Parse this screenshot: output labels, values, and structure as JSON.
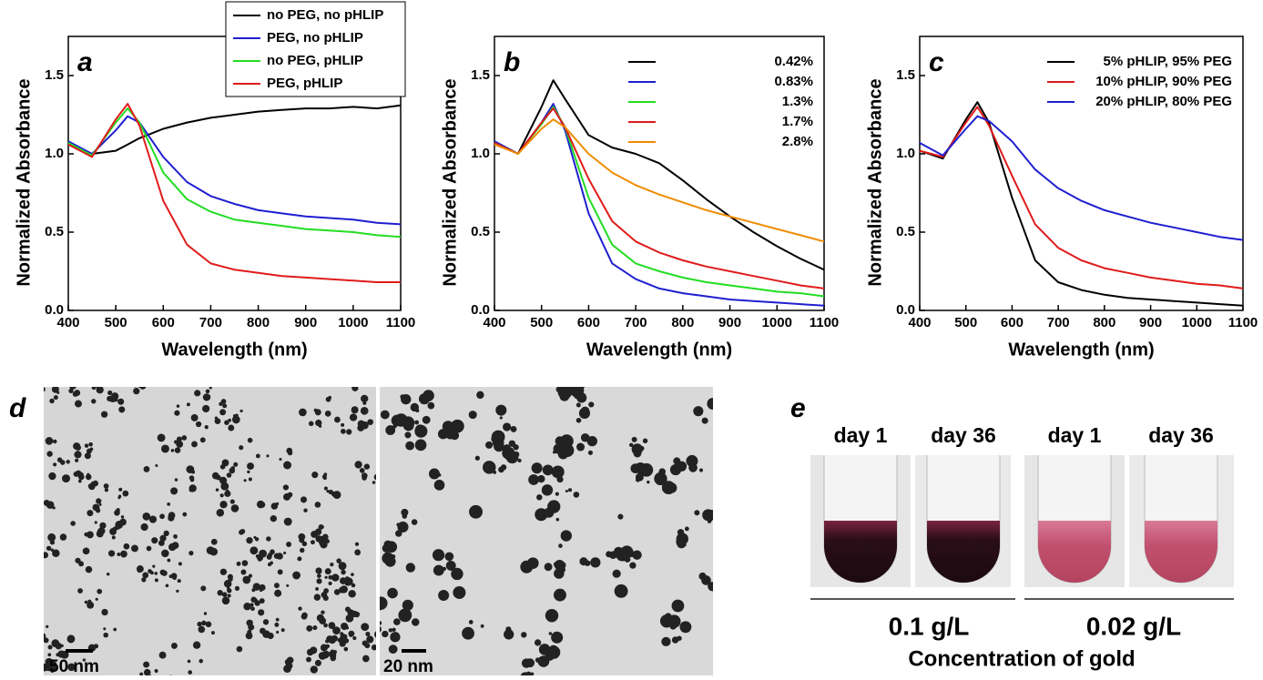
{
  "chart_data": [
    {
      "type": "line",
      "label": "a",
      "xlabel": "Wavelength (nm)",
      "ylabel": "Normalized Absorbance",
      "x": [
        400,
        450,
        500,
        525,
        550,
        600,
        650,
        700,
        750,
        800,
        850,
        900,
        950,
        1000,
        1050,
        1100
      ],
      "xlim": [
        400,
        1100
      ],
      "xticks": [
        400,
        500,
        600,
        700,
        800,
        900,
        1000,
        1100
      ],
      "ylim": [
        0,
        1.75
      ],
      "yticks": [
        {
          "value": 0,
          "label": "0.0"
        },
        {
          "value": 0.5,
          "label": "0.5"
        },
        {
          "value": 1,
          "label": "1.0"
        },
        {
          "value": 1.5,
          "label": "1.5"
        }
      ],
      "legend": "upper right",
      "legend_frame": true,
      "series": [
        {
          "name": "no PEG, no pHLIP",
          "color": "#000000",
          "values": [
            1.07,
            1.0,
            1.02,
            1.06,
            1.1,
            1.16,
            1.2,
            1.23,
            1.25,
            1.27,
            1.28,
            1.29,
            1.29,
            1.3,
            1.29,
            1.31
          ]
        },
        {
          "name": "PEG, no pHLIP",
          "color": "#1f1fd0",
          "values": [
            1.08,
            1.0,
            1.15,
            1.24,
            1.2,
            0.98,
            0.82,
            0.73,
            0.68,
            0.64,
            0.62,
            0.6,
            0.59,
            0.58,
            0.56,
            0.55
          ]
        },
        {
          "name": "no PEG, pHLIP",
          "color": "#22dd22",
          "values": [
            1.07,
            0.99,
            1.2,
            1.29,
            1.2,
            0.88,
            0.71,
            0.63,
            0.58,
            0.56,
            0.54,
            0.52,
            0.51,
            0.5,
            0.48,
            0.47
          ]
        },
        {
          "name": "PEG, pHLIP",
          "color": "#e01b1b",
          "values": [
            1.06,
            0.98,
            1.22,
            1.32,
            1.18,
            0.7,
            0.42,
            0.3,
            0.26,
            0.24,
            0.22,
            0.21,
            0.2,
            0.19,
            0.18,
            0.18
          ]
        }
      ]
    },
    {
      "type": "line",
      "label": "b",
      "xlabel": "Wavelength (nm)",
      "ylabel": "Normalized Absorbance",
      "x": [
        400,
        450,
        500,
        525,
        550,
        600,
        650,
        700,
        750,
        800,
        850,
        900,
        950,
        1000,
        1050,
        1100
      ],
      "xlim": [
        400,
        1100
      ],
      "xticks": [
        400,
        500,
        600,
        700,
        800,
        900,
        1000,
        1100
      ],
      "ylim": [
        0,
        1.75
      ],
      "yticks": [
        {
          "value": 0,
          "label": "0.0"
        },
        {
          "value": 0.5,
          "label": "0.5"
        },
        {
          "value": 1,
          "label": "1.0"
        },
        {
          "value": 1.5,
          "label": "1.5"
        }
      ],
      "legend": "upper right",
      "legend_frame": false,
      "series": [
        {
          "name": "0.42%",
          "color": "#000000",
          "values": [
            1.08,
            1.0,
            1.3,
            1.47,
            1.35,
            1.12,
            1.04,
            1.0,
            0.94,
            0.83,
            0.71,
            0.6,
            0.5,
            0.41,
            0.33,
            0.26
          ]
        },
        {
          "name": "0.83%",
          "color": "#1f1fd0",
          "values": [
            1.08,
            1.0,
            1.2,
            1.32,
            1.15,
            0.62,
            0.3,
            0.2,
            0.14,
            0.11,
            0.09,
            0.07,
            0.06,
            0.05,
            0.04,
            0.03
          ]
        },
        {
          "name": "1.3%",
          "color": "#22dd22",
          "values": [
            1.07,
            1.0,
            1.19,
            1.3,
            1.17,
            0.72,
            0.42,
            0.3,
            0.25,
            0.21,
            0.18,
            0.16,
            0.14,
            0.12,
            0.11,
            0.09
          ]
        },
        {
          "name": "1.7%",
          "color": "#e01b1b",
          "values": [
            1.07,
            1.0,
            1.2,
            1.29,
            1.17,
            0.84,
            0.57,
            0.44,
            0.37,
            0.32,
            0.28,
            0.25,
            0.22,
            0.19,
            0.16,
            0.14
          ]
        },
        {
          "name": "2.8%",
          "color": "#f08c00",
          "values": [
            1.06,
            1.0,
            1.16,
            1.22,
            1.17,
            1.0,
            0.88,
            0.8,
            0.74,
            0.69,
            0.64,
            0.6,
            0.56,
            0.52,
            0.48,
            0.44
          ]
        }
      ]
    },
    {
      "type": "line",
      "label": "c",
      "xlabel": "Wavelength (nm)",
      "ylabel": "Normalized Absorbance",
      "x": [
        400,
        450,
        500,
        525,
        550,
        600,
        650,
        700,
        750,
        800,
        850,
        900,
        950,
        1000,
        1050,
        1100
      ],
      "xlim": [
        400,
        1100
      ],
      "xticks": [
        400,
        500,
        600,
        700,
        800,
        900,
        1000,
        1100
      ],
      "ylim": [
        0,
        1.75
      ],
      "yticks": [
        {
          "value": 0,
          "label": "0.0"
        },
        {
          "value": 0.5,
          "label": "0.5"
        },
        {
          "value": 1,
          "label": "1.0"
        },
        {
          "value": 1.5,
          "label": "1.5"
        }
      ],
      "legend": "upper right",
      "legend_frame": false,
      "series": [
        {
          "name": "5% pHLIP, 95% PEG",
          "color": "#000000",
          "values": [
            1.02,
            0.97,
            1.22,
            1.33,
            1.2,
            0.72,
            0.32,
            0.18,
            0.13,
            0.1,
            0.08,
            0.07,
            0.06,
            0.05,
            0.04,
            0.03
          ]
        },
        {
          "name": "10% pHLIP, 90% PEG",
          "color": "#e01b1b",
          "values": [
            1.02,
            0.98,
            1.2,
            1.3,
            1.18,
            0.86,
            0.55,
            0.4,
            0.32,
            0.27,
            0.24,
            0.21,
            0.19,
            0.17,
            0.16,
            0.14
          ]
        },
        {
          "name": "20% pHLIP, 80% PEG",
          "color": "#1f1fd0",
          "values": [
            1.07,
            0.99,
            1.16,
            1.24,
            1.21,
            1.08,
            0.9,
            0.78,
            0.7,
            0.64,
            0.6,
            0.56,
            0.53,
            0.5,
            0.47,
            0.45
          ]
        }
      ]
    }
  ],
  "panel_d": {
    "label": "d",
    "scale_bars": [
      "50 nm",
      "20 nm"
    ]
  },
  "panel_e": {
    "label": "e",
    "tubes": [
      "day 1",
      "day 36",
      "day 1",
      "day 36"
    ],
    "concentrations": [
      "0.1 g/L",
      "0.02 g/L"
    ],
    "xlabel": "Concentration of gold"
  }
}
